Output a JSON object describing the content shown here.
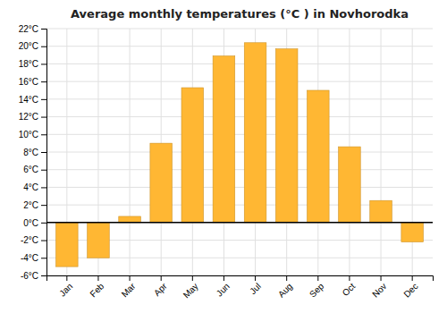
{
  "chart_data": {
    "type": "bar",
    "title": "Average monthly temperatures (°C ) in Novhorodka",
    "categories": [
      "Jan",
      "Feb",
      "Mar",
      "Apr",
      "May",
      "Jun",
      "Jul",
      "Aug",
      "Sep",
      "Oct",
      "Nov",
      "Dec"
    ],
    "values": [
      -5.0,
      -4.0,
      0.7,
      9.0,
      15.3,
      18.9,
      20.4,
      19.7,
      15.0,
      8.6,
      2.5,
      -2.2
    ],
    "color": "#FFB733",
    "ylim": [
      -6,
      22
    ],
    "yticks": [
      {
        "value": -6,
        "label": "-6°C"
      },
      {
        "value": -4,
        "label": "-4°C"
      },
      {
        "value": -2,
        "label": "-2°C"
      },
      {
        "value": 0,
        "label": "0°C"
      },
      {
        "value": 2,
        "label": "2°C"
      },
      {
        "value": 4,
        "label": "4°C"
      },
      {
        "value": 6,
        "label": "6°C"
      },
      {
        "value": 8,
        "label": "8°C"
      },
      {
        "value": 10,
        "label": "10°C"
      },
      {
        "value": 12,
        "label": "12°C"
      },
      {
        "value": 14,
        "label": "14°C"
      },
      {
        "value": 16,
        "label": "16°C"
      },
      {
        "value": 18,
        "label": "18°C"
      },
      {
        "value": 20,
        "label": "20°C"
      },
      {
        "value": 22,
        "label": "22°C"
      }
    ],
    "grid": true
  }
}
